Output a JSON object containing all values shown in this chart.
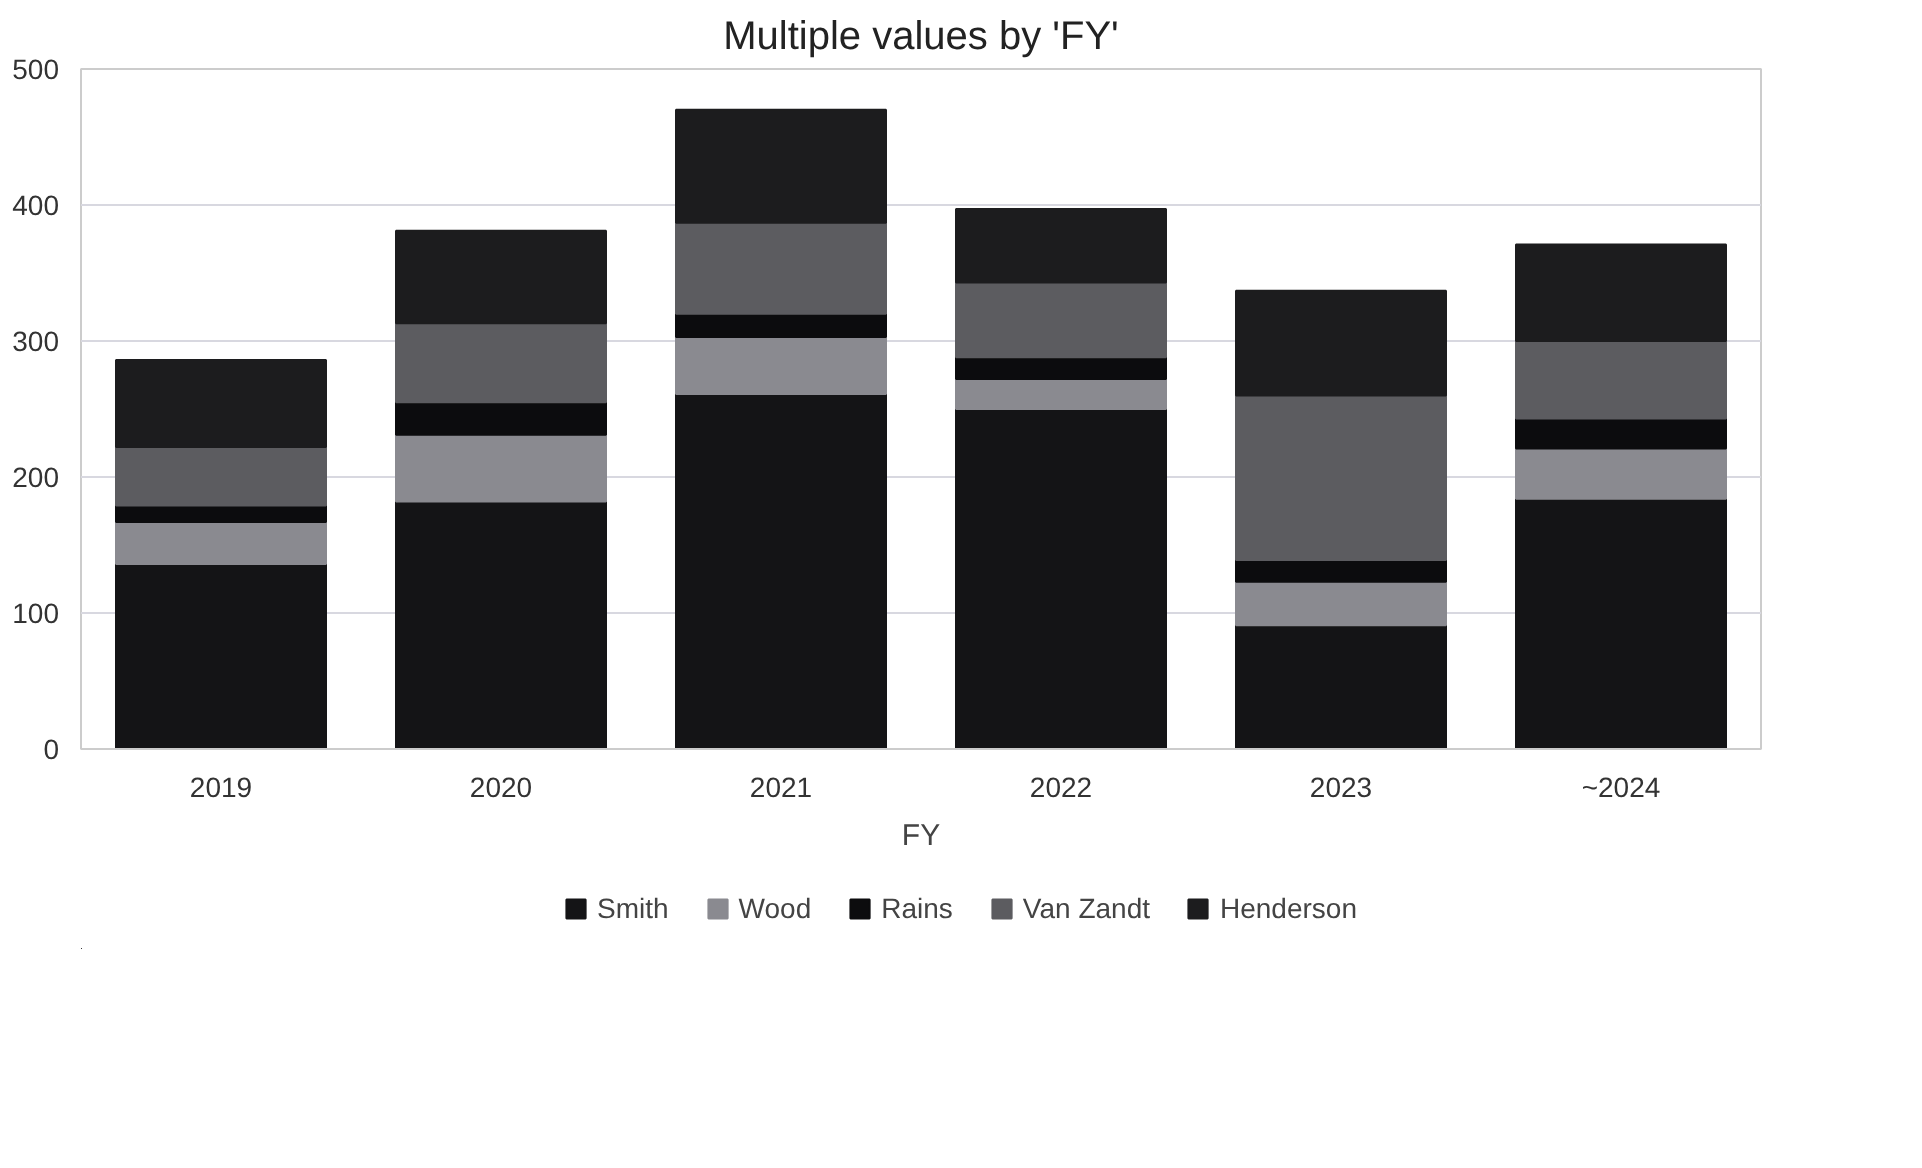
{
  "chart_data": {
    "type": "bar",
    "title": "Multiple values by 'FY'",
    "xlabel": "FY",
    "categories": [
      "2019",
      "2020",
      "2021",
      "2022",
      "2023",
      "~2024"
    ],
    "stacked": true,
    "ylim": [
      0,
      500
    ],
    "yticks": [
      0,
      100,
      200,
      300,
      400,
      500
    ],
    "grid": "y",
    "legend": "bottom",
    "series": [
      {
        "name": "Smith",
        "color": "#141416",
        "values": [
          136,
          182,
          261,
          250,
          91,
          184
        ]
      },
      {
        "name": "Wood",
        "color": "#8a8a90",
        "values": [
          31,
          49,
          42,
          22,
          32,
          37
        ]
      },
      {
        "name": "Rains",
        "color": "#0c0c0e",
        "values": [
          12,
          24,
          17,
          16,
          16,
          22
        ]
      },
      {
        "name": "Van Zandt",
        "color": "#5c5c60",
        "values": [
          43,
          58,
          67,
          55,
          121,
          57
        ]
      },
      {
        "name": "Henderson",
        "color": "#1c1c1e",
        "values": [
          64,
          68,
          83,
          54,
          77,
          71
        ]
      }
    ]
  }
}
